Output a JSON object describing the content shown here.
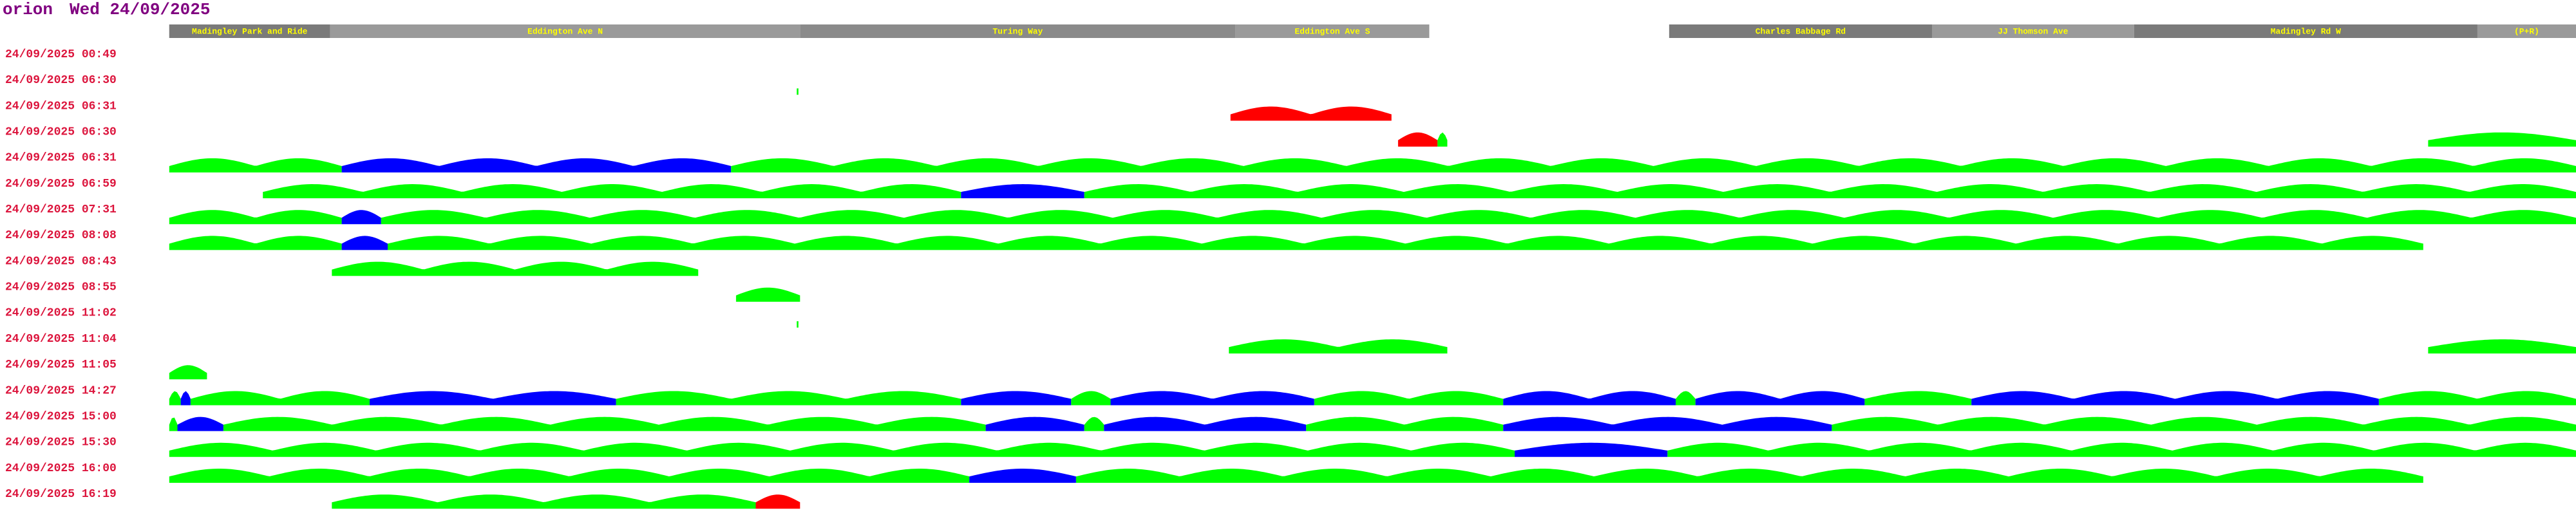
{
  "header": {
    "host": "orion",
    "date": "Wed 24/09/2025"
  },
  "segments": [
    "Madingley Park and Ride",
    "Eddington Ave N",
    "Turing Way",
    "Eddington Ave S",
    "Charles Babbage Rd",
    "JJ Thomson Ave",
    "Madingley Rd W",
    "(P+R)"
  ],
  "rows": [
    "24/09/2025 00:49",
    "24/09/2025 06:30",
    "24/09/2025 06:31",
    "24/09/2025 06:30",
    "24/09/2025 06:31",
    "24/09/2025 06:59",
    "24/09/2025 07:31",
    "24/09/2025 08:08",
    "24/09/2025 08:43",
    "24/09/2025 08:55",
    "24/09/2025 11:02",
    "24/09/2025 11:04",
    "24/09/2025 11:05",
    "24/09/2025 14:27",
    "24/09/2025 15:00",
    "24/09/2025 15:30",
    "24/09/2025 16:00",
    "24/09/2025 16:19"
  ]
}
